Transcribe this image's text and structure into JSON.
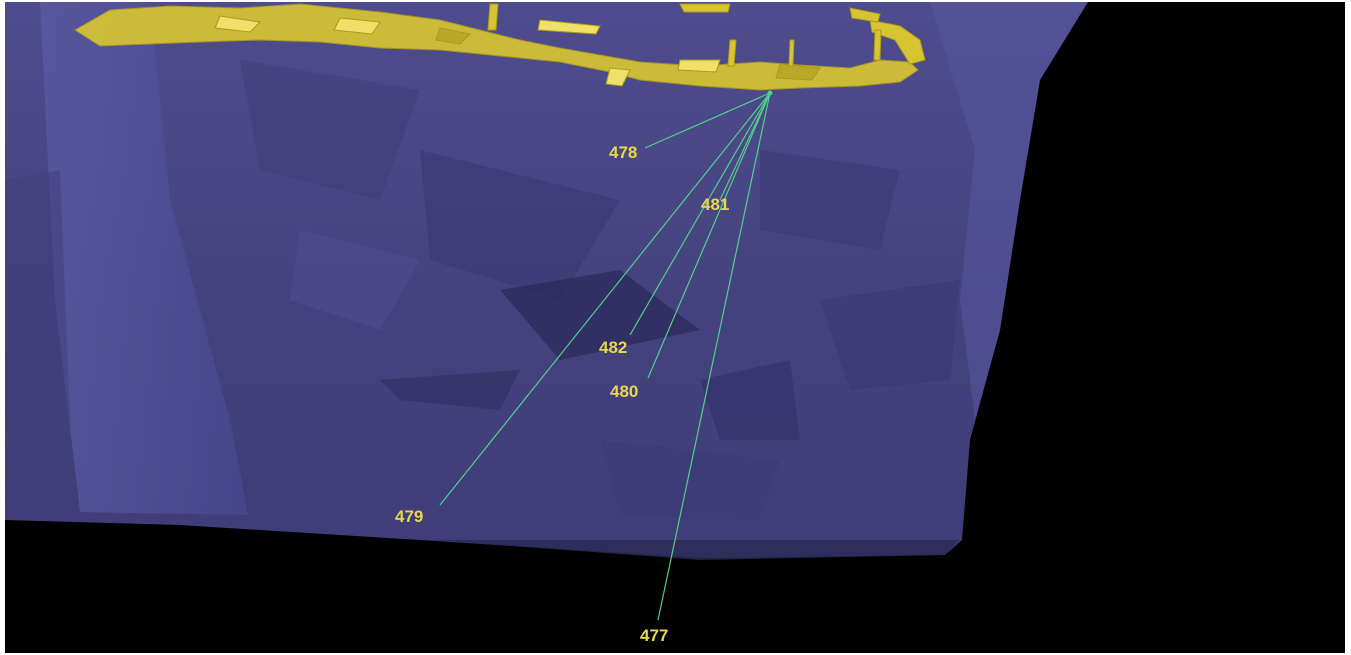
{
  "viewer": {
    "background_color": "#000000",
    "surface_color": "#4b4a8c",
    "orebody_color": "#d6c531",
    "drillhole_color": "#4fd08a",
    "label_color": "#e8d84a"
  },
  "drillholes": [
    {
      "id": "478",
      "label": "478"
    },
    {
      "id": "481",
      "label": "481"
    },
    {
      "id": "482",
      "label": "482"
    },
    {
      "id": "480",
      "label": "480"
    },
    {
      "id": "479",
      "label": "479"
    },
    {
      "id": "477",
      "label": "477"
    }
  ]
}
